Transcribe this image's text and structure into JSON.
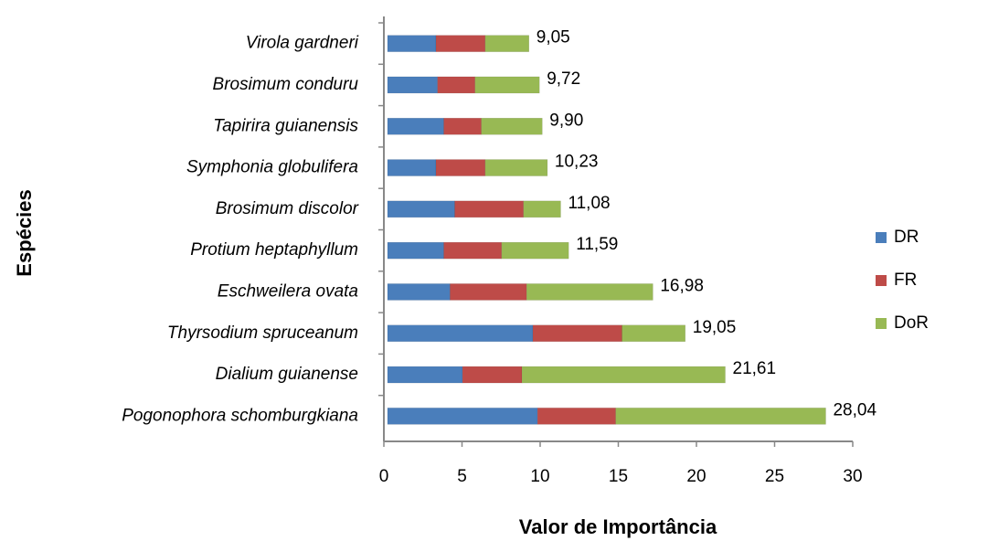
{
  "chart_data": {
    "type": "bar",
    "orientation": "horizontal",
    "stacked": true,
    "xlabel": "Valor de Importância",
    "ylabel": "Espécies",
    "categories": [
      "Virola gardneri",
      "Brosimum conduru",
      "Tapirira guianensis",
      "Symphonia globulifera",
      "Brosimum discolor",
      "Protium heptaphyllum",
      "Eschweilera ovata",
      "Thyrsodium spruceanum",
      "Dialium guianense",
      "Pogonophora schomburgkiana"
    ],
    "series": [
      {
        "name": "DR",
        "color": "#4a7ebb",
        "values": [
          3.1,
          3.2,
          3.6,
          3.1,
          4.3,
          3.6,
          4.0,
          9.3,
          4.8,
          9.6
        ]
      },
      {
        "name": "FR",
        "color": "#be4b48",
        "values": [
          3.15,
          2.4,
          2.4,
          3.15,
          4.4,
          3.7,
          4.9,
          5.7,
          3.8,
          5.0
        ]
      },
      {
        "name": "DoR",
        "color": "#98b954",
        "values": [
          2.8,
          4.12,
          3.9,
          3.98,
          2.38,
          4.29,
          8.08,
          4.05,
          13.01,
          13.44
        ]
      }
    ],
    "totals": [
      9.05,
      9.72,
      9.9,
      10.23,
      11.08,
      11.59,
      16.98,
      19.05,
      21.61,
      28.04
    ],
    "total_labels": [
      "9,05",
      "9,72",
      "9,90",
      "10,23",
      "11,08",
      "11,59",
      "16,98",
      "19,05",
      "21,61",
      "28,04"
    ],
    "xlim": [
      0,
      30
    ],
    "xticks": [
      0,
      5,
      10,
      15,
      20,
      25,
      30
    ],
    "legend": "right"
  }
}
